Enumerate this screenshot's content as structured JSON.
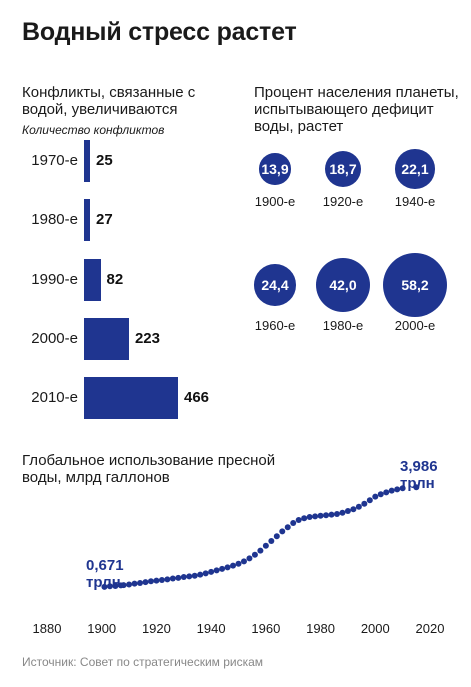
{
  "title": "Водный стресс растет",
  "source": "Источник: Совет по стратегическим рискам",
  "chart_data": [
    {
      "type": "bar",
      "orientation": "horizontal",
      "title": "Конфликты, связанные с водой, увеличиваются",
      "ylabel": "Количество конфликтов",
      "categories": [
        "1970-е",
        "1980-е",
        "1990-е",
        "2000-е",
        "2010-е"
      ],
      "values": [
        25,
        27,
        82,
        223,
        466
      ],
      "value_labels": [
        "25",
        "27",
        "82",
        "223",
        "466"
      ],
      "color": "#1f3590"
    },
    {
      "type": "scatter",
      "style": "bubble",
      "title": "Процент населения планеты, испытывающего дефицит воды, растет",
      "categories": [
        "1900-е",
        "1920-е",
        "1940-е",
        "1960-е",
        "1980-е",
        "2000-е"
      ],
      "values": [
        13.9,
        18.7,
        22.1,
        24.4,
        42.0,
        58.2
      ],
      "value_labels": [
        "13,9",
        "18,7",
        "22,1",
        "24,4",
        "42,0",
        "58,2"
      ],
      "color": "#1f3590"
    },
    {
      "type": "scatter",
      "title": "Глобальное использование пресной воды, млрд галлонов",
      "xlim": [
        1880,
        2020
      ],
      "ylim": [
        0,
        4.5
      ],
      "x_ticks": [
        "1880",
        "1900",
        "1920",
        "1940",
        "1960",
        "1980",
        "2000",
        "2020"
      ],
      "start_annotation": [
        "0,671",
        "трлн"
      ],
      "end_annotation": [
        "3,986",
        "трлн"
      ],
      "color": "#1f3590",
      "x": [
        1901,
        1903,
        1905,
        1907,
        1908,
        1910,
        1912,
        1914,
        1916,
        1918,
        1920,
        1922,
        1924,
        1926,
        1928,
        1930,
        1932,
        1934,
        1936,
        1938,
        1940,
        1942,
        1944,
        1946,
        1948,
        1950,
        1952,
        1954,
        1956,
        1958,
        1960,
        1962,
        1964,
        1966,
        1968,
        1970,
        1972,
        1974,
        1976,
        1978,
        1980,
        1982,
        1984,
        1986,
        1988,
        1990,
        1992,
        1994,
        1996,
        1998,
        2000,
        2002,
        2004,
        2006,
        2008,
        2010,
        2015
      ],
      "y": [
        0.67,
        0.69,
        0.7,
        0.72,
        0.73,
        0.75,
        0.78,
        0.8,
        0.83,
        0.86,
        0.88,
        0.9,
        0.92,
        0.95,
        0.97,
        1.0,
        1.02,
        1.04,
        1.08,
        1.12,
        1.17,
        1.22,
        1.27,
        1.32,
        1.38,
        1.44,
        1.52,
        1.62,
        1.74,
        1.88,
        2.04,
        2.2,
        2.36,
        2.52,
        2.66,
        2.8,
        2.9,
        2.96,
        3.0,
        3.02,
        3.04,
        3.06,
        3.08,
        3.1,
        3.14,
        3.2,
        3.26,
        3.34,
        3.44,
        3.56,
        3.68,
        3.76,
        3.82,
        3.88,
        3.92,
        3.96,
        3.99
      ]
    }
  ]
}
